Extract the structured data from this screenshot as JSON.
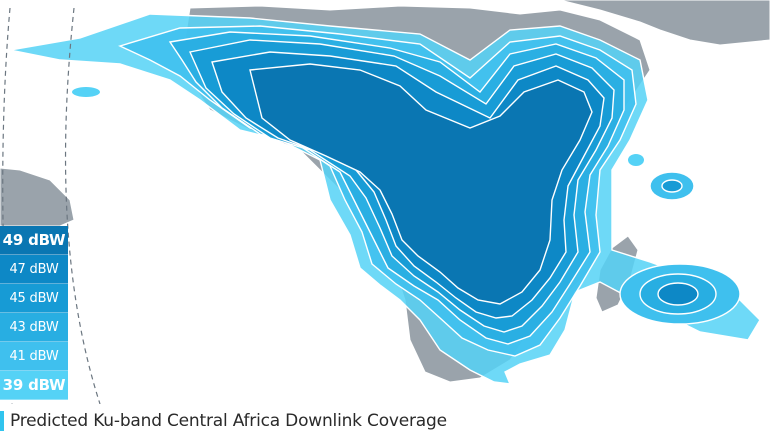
{
  "caption": "Predicted Ku-band Central Africa Downlink Coverage",
  "colors": {
    "land": "#9aa3ab",
    "border": "#ffffff",
    "c39": "#55d2f6",
    "c41": "#3fc0ee",
    "c43": "#28aee2",
    "c45": "#179bd5",
    "c47": "#0d88c6",
    "c49": "#0a76b2",
    "accent": "#31c4ee"
  },
  "legend": [
    {
      "label": "49 dBW",
      "value": 49,
      "color": "#0a76b2",
      "strong": true
    },
    {
      "label": "47 dBW",
      "value": 47,
      "color": "#0d88c6",
      "strong": false
    },
    {
      "label": "45 dBW",
      "value": 45,
      "color": "#179bd5",
      "strong": false
    },
    {
      "label": "43 dBW",
      "value": 43,
      "color": "#28aee2",
      "strong": false
    },
    {
      "label": "41 dBW",
      "value": 41,
      "color": "#3fc0ee",
      "strong": false
    },
    {
      "label": "39 dBW",
      "value": 39,
      "color": "#55d2f6",
      "strong": true
    }
  ]
}
